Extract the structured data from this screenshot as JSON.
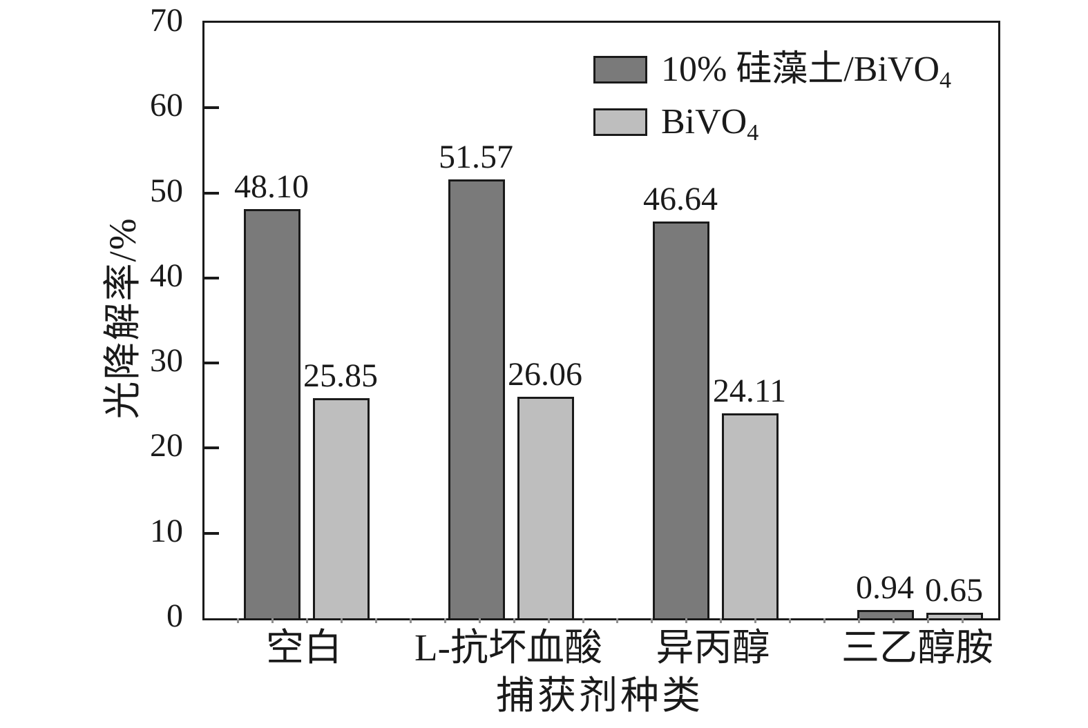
{
  "chart_data": {
    "type": "bar",
    "title": "",
    "xlabel": "捕获剂种类",
    "ylabel": "光降解率/%",
    "categories": [
      "空白",
      "L-抗坏血酸",
      "异丙醇",
      "三乙醇胺"
    ],
    "series": [
      {
        "name": "10% 硅藻土/BiVO₄",
        "values": [
          48.1,
          51.57,
          46.64,
          0.94
        ],
        "value_labels": [
          "48.10",
          "51.57",
          "46.64",
          "0.94"
        ],
        "color": "#7a7a7a"
      },
      {
        "name": "BiVO₄",
        "values": [
          25.85,
          26.06,
          24.11,
          0.65
        ],
        "value_labels": [
          "25.85",
          "26.06",
          "24.11",
          "0.65"
        ],
        "color": "#bebebe"
      }
    ],
    "ylim": [
      0,
      70
    ],
    "yticks": [
      0,
      10,
      20,
      30,
      40,
      50,
      60,
      70
    ],
    "grid": false,
    "legend_position": "inside-top-center",
    "bar_outline_color": "#1a1a1a",
    "frame": true
  },
  "legend": {
    "items": [
      {
        "base": "10% 硅藻土/BiVO",
        "sub": "4",
        "color": "#7a7a7a"
      },
      {
        "base": "BiVO",
        "sub": "4",
        "color": "#bebebe"
      }
    ]
  },
  "axes": {
    "x_title": "捕获剂种类",
    "y_title": "光降解率/%"
  }
}
